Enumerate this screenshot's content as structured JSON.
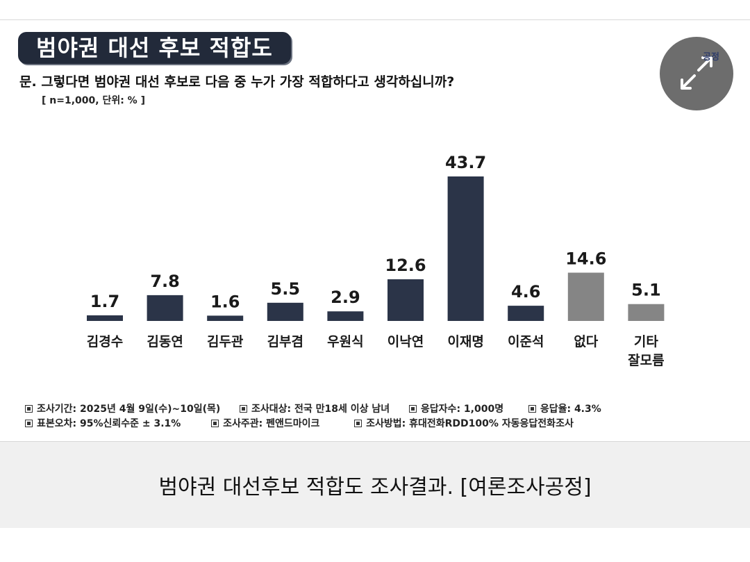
{
  "figure": {
    "title": "범야권 대선 후보 적합도",
    "question": "문. 그렇다면 범야권 대선 후보로 다음 중 누가 가장 적합하다고 생각하십니까?",
    "meta": "[ n=1,000, 단위: % ]",
    "logo_text": "공정",
    "expand_icon": "expand-arrows-icon"
  },
  "chart_data": {
    "type": "bar",
    "categories": [
      "김경수",
      "김동연",
      "김두관",
      "김부겸",
      "우원식",
      "이낙연",
      "이재명",
      "이준석",
      "없다",
      "기타\n잘모름"
    ],
    "values": [
      1.7,
      7.8,
      1.6,
      5.5,
      2.9,
      12.6,
      43.7,
      4.6,
      14.6,
      5.1
    ],
    "data_labels": [
      "1.7",
      "7.8",
      "1.6",
      "5.5",
      "2.9",
      "12.6",
      "43.7",
      "4.6",
      "14.6",
      "5.1"
    ],
    "colors": [
      "#2b3448",
      "#2b3448",
      "#2b3448",
      "#2b3448",
      "#2b3448",
      "#2b3448",
      "#2b3448",
      "#2b3448",
      "#858585",
      "#858585"
    ],
    "ylim": [
      0,
      45
    ],
    "grid": false,
    "title": "",
    "xlabel": "",
    "ylabel": ""
  },
  "footnotes": {
    "row1": [
      "조사기간: 2025년 4월 9일(수)~10일(목)",
      "조사대상: 전국 만18세 이상 남녀",
      "응답자수: 1,000명",
      "응답율: 4.3%"
    ],
    "row2": [
      "표본오차: 95%신뢰수준 ± 3.1%",
      "조사주관: 펜앤드마이크",
      "조사방법: 휴대전화RDD100% 자동응답전화조사"
    ]
  },
  "caption": "범야권 대선후보 적합도 조사결과. [여론조사공정]"
}
